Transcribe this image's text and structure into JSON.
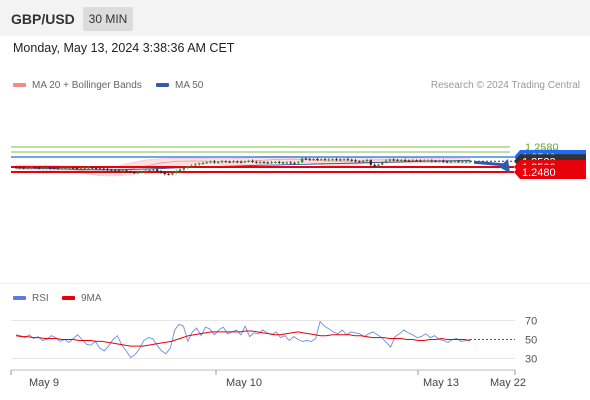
{
  "header": {
    "symbol": "GBP/USD",
    "timeframe": "30 MIN",
    "datetime": "Monday, May 13, 2024 3:38:36 AM CET"
  },
  "legend": {
    "bollinger": "MA 20 + Bollinger Bands",
    "ma50": "MA 50",
    "credit": "Research © 2024 Trading Central"
  },
  "rsi_legend": {
    "rsi": "RSI",
    "ma": "9MA"
  },
  "colors": {
    "resistance": "#1e6cf0",
    "support": "#e8000b",
    "target_green": "#7fbf3f",
    "ma50": "#3a5aa8",
    "bollinger": "#f4a6a6",
    "candle_up": "#2e8b3a",
    "candle_down": "#2a2a2a",
    "arrow": "#2b5cb0",
    "current_price": "#333333"
  },
  "chart_data": [
    {
      "type": "candlestick",
      "title": "GBP/USD 30 MIN",
      "x_tick_labels": [
        "May 9",
        "May 10",
        "May 13",
        "May 22"
      ],
      "ylim": [
        1.2465,
        1.2595
      ],
      "price_levels": [
        {
          "label": "1.2580",
          "value": 1.258,
          "kind": "target"
        },
        {
          "label": "1.2560",
          "value": 1.256,
          "kind": "target"
        },
        {
          "label": "1.2540",
          "value": 1.254,
          "kind": "resistance"
        },
        {
          "label": "1.2523",
          "value": 1.2523,
          "kind": "current"
        },
        {
          "label": "1.2500",
          "value": 1.25,
          "kind": "support"
        },
        {
          "label": "1.2480",
          "value": 1.248,
          "kind": "support"
        }
      ],
      "forecast_arrow": {
        "from": 1.2523,
        "to": 1.248
      },
      "close_path": [
        1.2498,
        1.2497,
        1.2496,
        1.2497,
        1.2498,
        1.2497,
        1.2495,
        1.2496,
        1.2497,
        1.2496,
        1.2495,
        1.2494,
        1.2495,
        1.2496,
        1.2497,
        1.2496,
        1.2494,
        1.2495,
        1.2497,
        1.2498,
        1.2496,
        1.2494,
        1.2493,
        1.2491,
        1.2489,
        1.2487,
        1.2486,
        1.2484,
        1.2486,
        1.2482,
        1.2479,
        1.2476,
        1.2479,
        1.248,
        1.2485,
        1.2488,
        1.249,
        1.2484,
        1.2478,
        1.2472,
        1.247,
        1.2476,
        1.2484,
        1.249,
        1.2496,
        1.2502,
        1.2506,
        1.251,
        1.2514,
        1.2516,
        1.2519,
        1.2522,
        1.2518,
        1.252,
        1.2523,
        1.2521,
        1.252,
        1.2522,
        1.2521,
        1.252,
        1.2522,
        1.2524,
        1.2521,
        1.2519,
        1.252,
        1.2518,
        1.2517,
        1.2519,
        1.252,
        1.2518,
        1.2516,
        1.2518,
        1.2517,
        1.2516,
        1.2519,
        1.2534,
        1.2531,
        1.253,
        1.2532,
        1.253,
        1.2531,
        1.2529,
        1.253,
        1.2531,
        1.253,
        1.2529,
        1.2531,
        1.2529,
        1.2527,
        1.2523,
        1.2521,
        1.2524,
        1.2527,
        1.2509,
        1.2503,
        1.251,
        1.2518,
        1.2525,
        1.253,
        1.2529,
        1.2527,
        1.2528,
        1.2526,
        1.2525,
        1.2527,
        1.2526,
        1.2524,
        1.2525,
        1.2526,
        1.2524,
        1.2523,
        1.2524,
        1.2522,
        1.2521,
        1.2522,
        1.2523,
        1.2521,
        1.2522,
        1.2522,
        1.2523
      ],
      "ma50_path": [
        1.2496,
        1.2495,
        1.2494,
        1.2492,
        1.249,
        1.2489,
        1.2489,
        1.249,
        1.2492,
        1.2494,
        1.2497,
        1.2499,
        1.2501,
        1.2503,
        1.2505,
        1.2507,
        1.2508,
        1.251,
        1.2511,
        1.2513,
        1.2514,
        1.2516,
        1.2518,
        1.2519,
        1.2521,
        1.2523,
        1.2524,
        1.2525,
        1.2526
      ],
      "bb_upper": [
        1.2508,
        1.2508,
        1.2507,
        1.2503,
        1.2498,
        1.249,
        1.2498,
        1.2515,
        1.2528,
        1.2534,
        1.2536,
        1.2536,
        1.2534,
        1.2533,
        1.2535,
        1.2542,
        1.2543,
        1.2542,
        1.254,
        1.2541,
        1.2541,
        1.2538,
        1.2539,
        1.254,
        1.2537,
        1.2536,
        1.2535,
        1.2534,
        1.2533
      ],
      "bb_lower": [
        1.249,
        1.2488,
        1.2486,
        1.2481,
        1.2476,
        1.2466,
        1.2464,
        1.2468,
        1.248,
        1.25,
        1.251,
        1.2512,
        1.2512,
        1.251,
        1.251,
        1.251,
        1.2517,
        1.2521,
        1.2519,
        1.2507,
        1.2505,
        1.251,
        1.2517,
        1.2518,
        1.2516,
        1.2516,
        1.2516,
        1.2515,
        1.2514
      ]
    },
    {
      "type": "line",
      "title": "RSI",
      "series": [
        {
          "name": "RSI",
          "values": [
            55,
            54,
            52,
            55,
            51,
            53,
            49,
            50,
            54,
            52,
            48,
            50,
            47,
            51,
            55,
            50,
            45,
            44,
            48,
            41,
            38,
            43,
            50,
            54,
            44,
            38,
            31,
            34,
            40,
            49,
            52,
            51,
            44,
            38,
            35,
            41,
            60,
            66,
            64,
            48,
            58,
            62,
            54,
            63,
            61,
            55,
            60,
            63,
            56,
            58,
            60,
            55,
            64,
            53,
            57,
            56,
            60,
            57,
            55,
            58,
            52,
            54,
            49,
            53,
            50,
            48,
            49,
            48,
            51,
            69,
            64,
            61,
            58,
            56,
            60,
            55,
            58,
            57,
            56,
            53,
            56,
            58,
            55,
            52,
            47,
            42,
            53,
            56,
            60,
            57,
            55,
            52,
            53,
            56,
            52,
            54,
            50,
            49,
            47,
            50,
            51,
            48,
            49,
            50
          ]
        },
        {
          "name": "9MA",
          "values": [
            54,
            53,
            53,
            52,
            52,
            51,
            51,
            51,
            50,
            50,
            50,
            49,
            49,
            49,
            48,
            48,
            47,
            46,
            45,
            44,
            43,
            43,
            43,
            44,
            45,
            46,
            47,
            48,
            50,
            52,
            54,
            55,
            56,
            57,
            58,
            58,
            58,
            58,
            58,
            58,
            59,
            59,
            58,
            57,
            56,
            55,
            55,
            56,
            57,
            58,
            57,
            56,
            55,
            54,
            54,
            55,
            55,
            55,
            55,
            54,
            54,
            53,
            52,
            52,
            52,
            51,
            51,
            51,
            50,
            50,
            49,
            49,
            50,
            50,
            51,
            50,
            50,
            50,
            50,
            49
          ]
        }
      ],
      "y_tick_labels": [
        "70",
        "50",
        "30"
      ],
      "ylim": [
        20,
        80
      ]
    }
  ]
}
